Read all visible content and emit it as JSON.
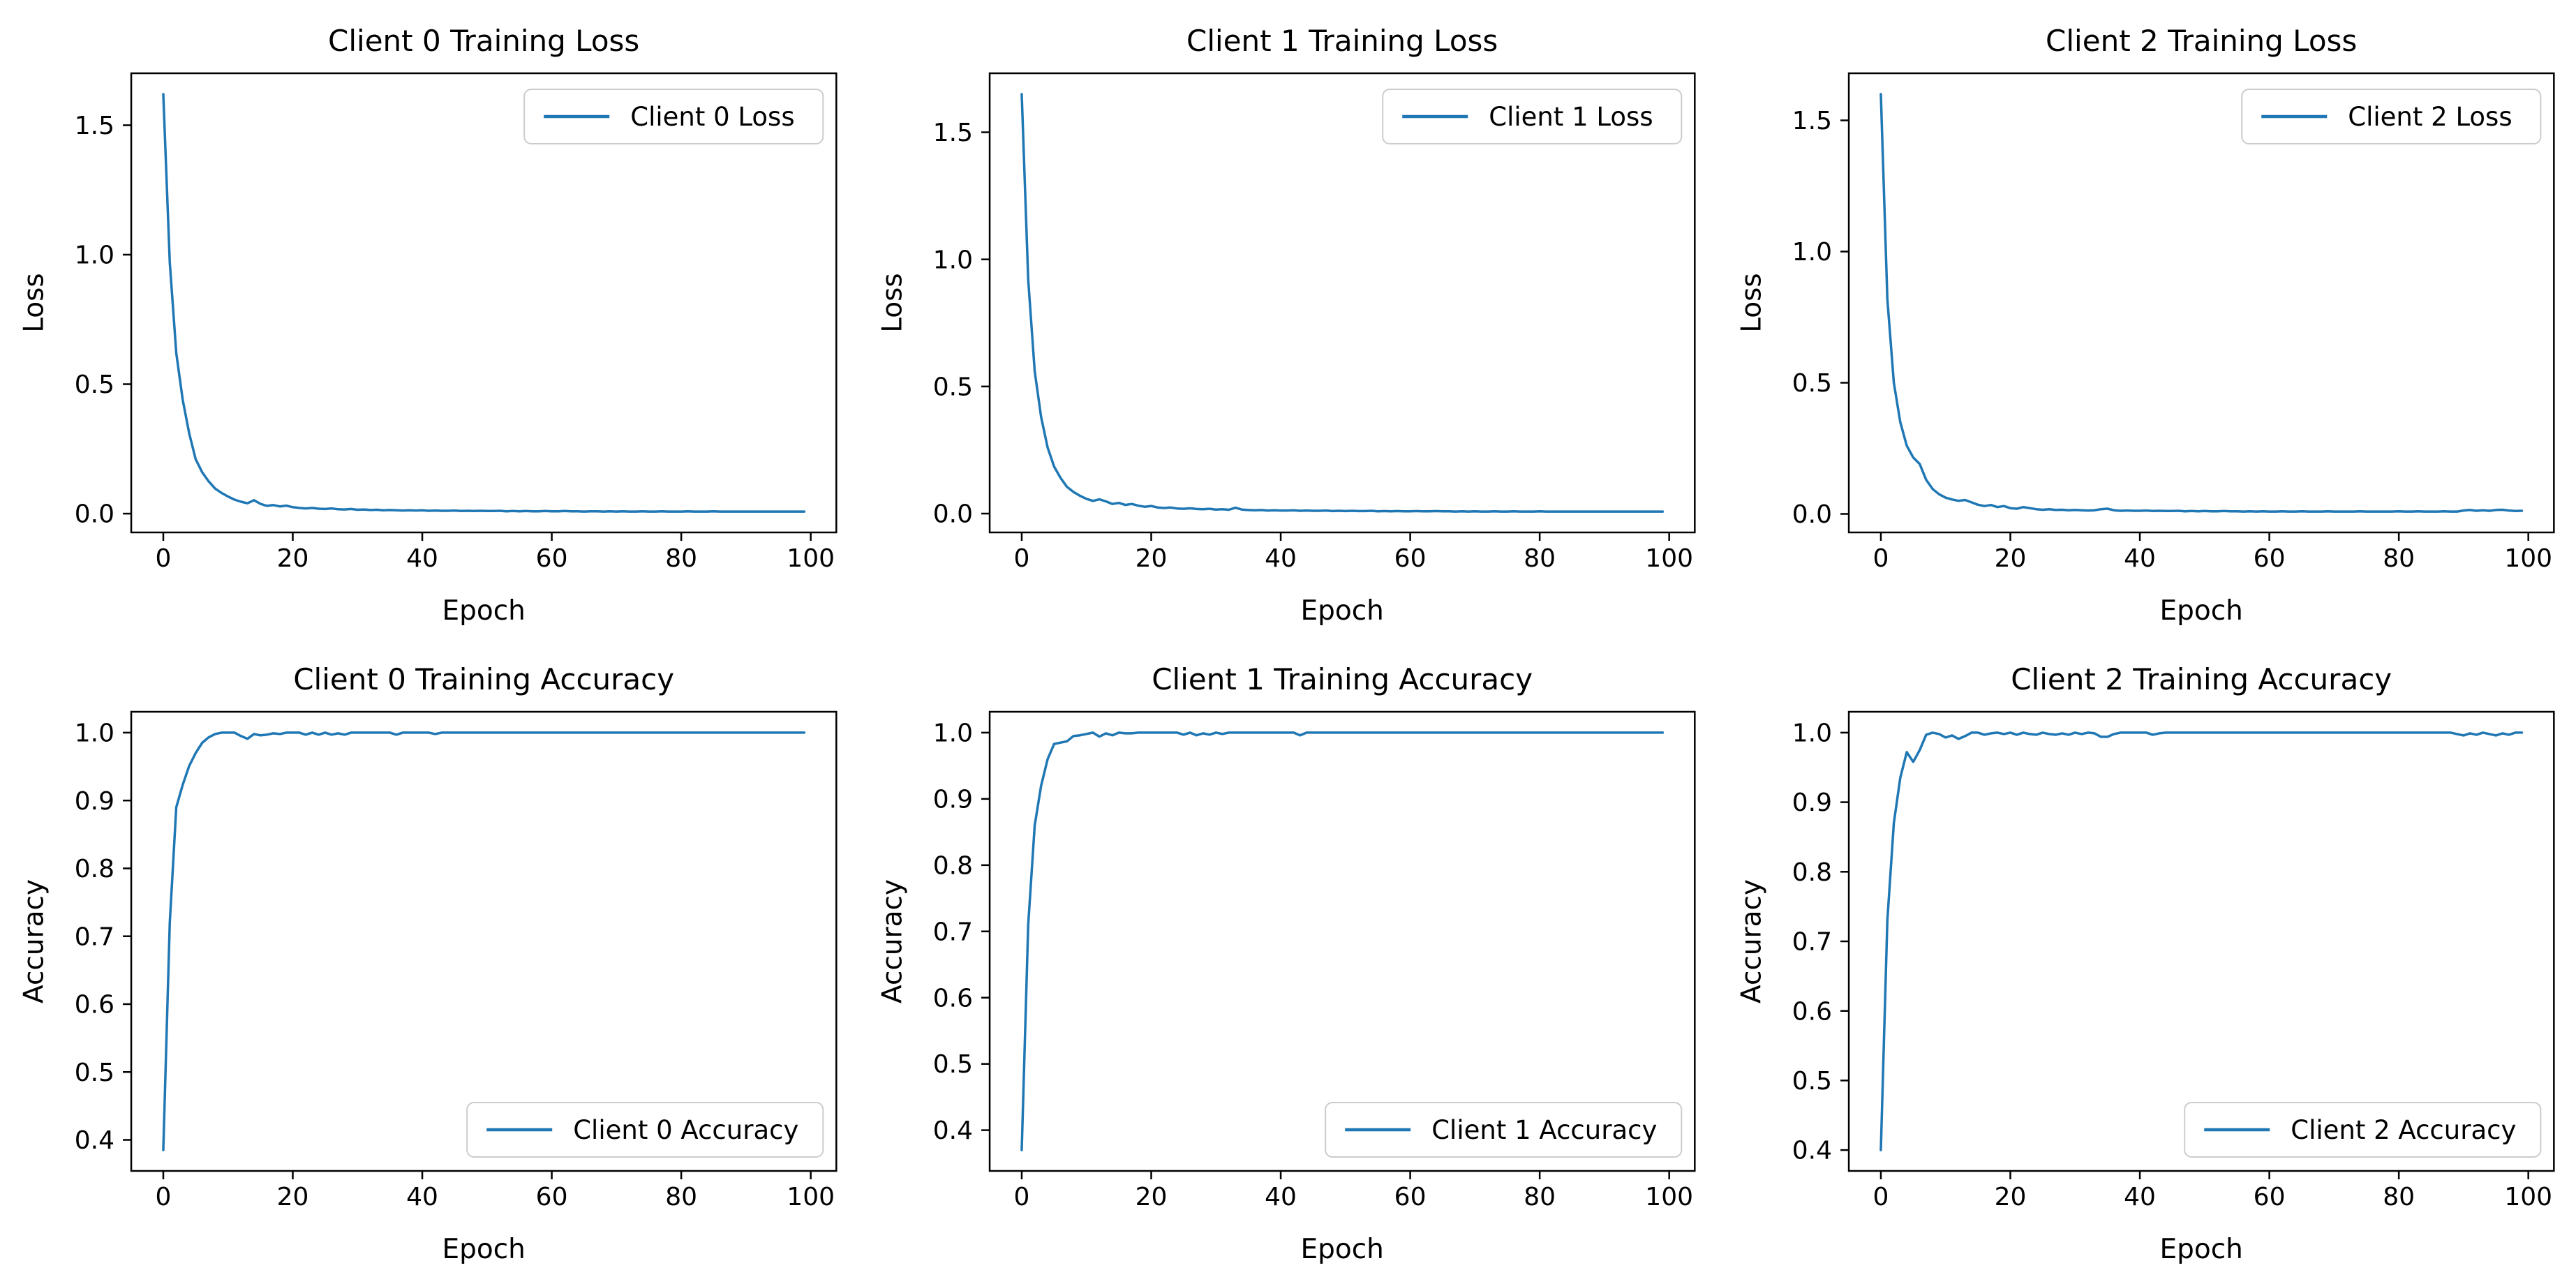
{
  "figure": {
    "background": "#ffffff",
    "accent_line_color": "#1f77b4",
    "axes_color": "#000000",
    "legend_border_color": "#cccccc",
    "grid": "off"
  },
  "chart_data": [
    {
      "type": "line",
      "title": "Client 0 Training Loss",
      "xlabel": "Epoch",
      "ylabel": "Loss",
      "xlim": [
        -4.95,
        103.95
      ],
      "xticks": [
        0,
        20,
        40,
        60,
        80,
        100
      ],
      "yticks": [
        0.0,
        0.5,
        1.0,
        1.5
      ],
      "ytick_labels": [
        "0.0",
        "0.5",
        "1.0",
        "1.5"
      ],
      "legend": {
        "label": "Client 0 Loss",
        "loc": "upper right"
      },
      "series": [
        {
          "name": "Client 0 Loss",
          "color": "#1f77b4",
          "x_is_index": true,
          "values": [
            1.62,
            0.97,
            0.62,
            0.44,
            0.31,
            0.21,
            0.16,
            0.125,
            0.097,
            0.08,
            0.066,
            0.054,
            0.046,
            0.04,
            0.052,
            0.038,
            0.03,
            0.033,
            0.028,
            0.031,
            0.025,
            0.022,
            0.02,
            0.022,
            0.019,
            0.018,
            0.02,
            0.017,
            0.016,
            0.018,
            0.015,
            0.016,
            0.014,
            0.015,
            0.013,
            0.014,
            0.013,
            0.012,
            0.013,
            0.012,
            0.013,
            0.011,
            0.012,
            0.011,
            0.011,
            0.012,
            0.01,
            0.011,
            0.01,
            0.011,
            0.01,
            0.01,
            0.011,
            0.009,
            0.01,
            0.009,
            0.01,
            0.009,
            0.009,
            0.01,
            0.009,
            0.009,
            0.01,
            0.009,
            0.009,
            0.008,
            0.009,
            0.009,
            0.008,
            0.009,
            0.008,
            0.009,
            0.008,
            0.008,
            0.009,
            0.008,
            0.008,
            0.009,
            0.008,
            0.008,
            0.008,
            0.009,
            0.008,
            0.008,
            0.008,
            0.009,
            0.008,
            0.008,
            0.008,
            0.008,
            0.008,
            0.008,
            0.008,
            0.008,
            0.008,
            0.008,
            0.008,
            0.008,
            0.008,
            0.008
          ]
        }
      ]
    },
    {
      "type": "line",
      "title": "Client 1 Training Loss",
      "xlabel": "Epoch",
      "ylabel": "Loss",
      "xlim": [
        -4.95,
        103.95
      ],
      "xticks": [
        0,
        20,
        40,
        60,
        80,
        100
      ],
      "yticks": [
        0.0,
        0.5,
        1.0,
        1.5
      ],
      "ytick_labels": [
        "0.0",
        "0.5",
        "1.0",
        "1.5"
      ],
      "legend": {
        "label": "Client 1 Loss",
        "loc": "upper right"
      },
      "series": [
        {
          "name": "Client 1 Loss",
          "color": "#1f77b4",
          "x_is_index": true,
          "values": [
            1.65,
            0.92,
            0.56,
            0.38,
            0.26,
            0.185,
            0.14,
            0.105,
            0.085,
            0.07,
            0.058,
            0.05,
            0.056,
            0.048,
            0.038,
            0.042,
            0.034,
            0.038,
            0.031,
            0.027,
            0.03,
            0.024,
            0.022,
            0.024,
            0.02,
            0.019,
            0.021,
            0.018,
            0.017,
            0.019,
            0.016,
            0.017,
            0.015,
            0.023,
            0.016,
            0.014,
            0.013,
            0.014,
            0.012,
            0.013,
            0.012,
            0.012,
            0.013,
            0.011,
            0.012,
            0.011,
            0.011,
            0.012,
            0.01,
            0.011,
            0.01,
            0.011,
            0.01,
            0.01,
            0.011,
            0.009,
            0.01,
            0.009,
            0.01,
            0.009,
            0.009,
            0.01,
            0.009,
            0.009,
            0.01,
            0.009,
            0.009,
            0.008,
            0.009,
            0.008,
            0.009,
            0.008,
            0.008,
            0.009,
            0.008,
            0.008,
            0.009,
            0.008,
            0.008,
            0.008,
            0.009,
            0.008,
            0.008,
            0.008,
            0.008,
            0.008,
            0.008,
            0.008,
            0.008,
            0.008,
            0.008,
            0.008,
            0.008,
            0.008,
            0.008,
            0.008,
            0.008,
            0.008,
            0.008,
            0.008
          ]
        }
      ]
    },
    {
      "type": "line",
      "title": "Client 2 Training Loss",
      "xlabel": "Epoch",
      "ylabel": "Loss",
      "xlim": [
        -4.95,
        103.95
      ],
      "xticks": [
        0,
        20,
        40,
        60,
        80,
        100
      ],
      "yticks": [
        0.0,
        0.5,
        1.0,
        1.5
      ],
      "ytick_labels": [
        "0.0",
        "0.5",
        "1.0",
        "1.5"
      ],
      "legend": {
        "label": "Client 2 Loss",
        "loc": "upper right"
      },
      "series": [
        {
          "name": "Client 2 Loss",
          "color": "#1f77b4",
          "x_is_index": true,
          "values": [
            1.6,
            0.82,
            0.5,
            0.35,
            0.26,
            0.215,
            0.19,
            0.13,
            0.095,
            0.075,
            0.062,
            0.055,
            0.05,
            0.053,
            0.044,
            0.035,
            0.03,
            0.034,
            0.026,
            0.03,
            0.022,
            0.02,
            0.026,
            0.022,
            0.018,
            0.016,
            0.018,
            0.015,
            0.016,
            0.014,
            0.015,
            0.014,
            0.013,
            0.014,
            0.018,
            0.02,
            0.014,
            0.012,
            0.013,
            0.012,
            0.012,
            0.013,
            0.011,
            0.012,
            0.011,
            0.011,
            0.012,
            0.01,
            0.011,
            0.01,
            0.011,
            0.01,
            0.01,
            0.011,
            0.01,
            0.01,
            0.009,
            0.01,
            0.009,
            0.01,
            0.009,
            0.009,
            0.01,
            0.009,
            0.009,
            0.01,
            0.009,
            0.009,
            0.009,
            0.01,
            0.009,
            0.009,
            0.009,
            0.009,
            0.01,
            0.009,
            0.009,
            0.009,
            0.009,
            0.009,
            0.01,
            0.009,
            0.009,
            0.01,
            0.009,
            0.009,
            0.009,
            0.01,
            0.009,
            0.009,
            0.013,
            0.015,
            0.012,
            0.014,
            0.012,
            0.015,
            0.016,
            0.013,
            0.011,
            0.012
          ]
        }
      ]
    },
    {
      "type": "line",
      "title": "Client 0 Training Accuracy",
      "xlabel": "Epoch",
      "ylabel": "Accuracy",
      "xlim": [
        -4.95,
        103.95
      ],
      "xticks": [
        0,
        20,
        40,
        60,
        80,
        100
      ],
      "yticks": [
        0.4,
        0.5,
        0.6,
        0.7,
        0.8,
        0.9,
        1.0
      ],
      "ytick_labels": [
        "0.4",
        "0.5",
        "0.6",
        "0.7",
        "0.8",
        "0.9",
        "1.0"
      ],
      "legend": {
        "label": "Client 0 Accuracy",
        "loc": "lower right"
      },
      "series": [
        {
          "name": "Client 0 Accuracy",
          "color": "#1f77b4",
          "x_is_index": true,
          "values": [
            0.385,
            0.72,
            0.89,
            0.923,
            0.951,
            0.97,
            0.985,
            0.993,
            0.998,
            1.0,
            1.0,
            1.0,
            0.995,
            0.991,
            0.998,
            0.996,
            0.997,
            0.999,
            0.998,
            1.0,
            1.0,
            1.0,
            0.997,
            1.0,
            0.997,
            1.0,
            0.997,
            0.999,
            0.997,
            1.0,
            1.0,
            1.0,
            1.0,
            1.0,
            1.0,
            1.0,
            0.997,
            1.0,
            1.0,
            1.0,
            1.0,
            1.0,
            0.998,
            1.0,
            1.0,
            1.0,
            1.0,
            1.0,
            1.0,
            1.0,
            1.0,
            1.0,
            1.0,
            1.0,
            1.0,
            1.0,
            1.0,
            1.0,
            1.0,
            1.0,
            1.0,
            1.0,
            1.0,
            1.0,
            1.0,
            1.0,
            1.0,
            1.0,
            1.0,
            1.0,
            1.0,
            1.0,
            1.0,
            1.0,
            1.0,
            1.0,
            1.0,
            1.0,
            1.0,
            1.0,
            1.0,
            1.0,
            1.0,
            1.0,
            1.0,
            1.0,
            1.0,
            1.0,
            1.0,
            1.0,
            1.0,
            1.0,
            1.0,
            1.0,
            1.0,
            1.0,
            1.0,
            1.0,
            1.0,
            1.0
          ]
        }
      ]
    },
    {
      "type": "line",
      "title": "Client 1 Training Accuracy",
      "xlabel": "Epoch",
      "ylabel": "Accuracy",
      "xlim": [
        -4.95,
        103.95
      ],
      "xticks": [
        0,
        20,
        40,
        60,
        80,
        100
      ],
      "yticks": [
        0.4,
        0.5,
        0.6,
        0.7,
        0.8,
        0.9,
        1.0
      ],
      "ytick_labels": [
        "0.4",
        "0.5",
        "0.6",
        "0.7",
        "0.8",
        "0.9",
        "1.0"
      ],
      "legend": {
        "label": "Client 1 Accuracy",
        "loc": "lower right"
      },
      "series": [
        {
          "name": "Client 1 Accuracy",
          "color": "#1f77b4",
          "x_is_index": true,
          "values": [
            0.37,
            0.71,
            0.86,
            0.92,
            0.96,
            0.983,
            0.985,
            0.987,
            0.995,
            0.996,
            0.998,
            1.0,
            0.994,
            0.999,
            0.996,
            1.0,
            0.999,
            0.999,
            1.0,
            1.0,
            1.0,
            1.0,
            1.0,
            1.0,
            1.0,
            0.997,
            1.0,
            0.996,
            0.999,
            0.997,
            1.0,
            0.998,
            1.0,
            1.0,
            1.0,
            1.0,
            1.0,
            1.0,
            1.0,
            1.0,
            1.0,
            1.0,
            1.0,
            0.996,
            1.0,
            1.0,
            1.0,
            1.0,
            1.0,
            1.0,
            1.0,
            1.0,
            1.0,
            1.0,
            1.0,
            1.0,
            1.0,
            1.0,
            1.0,
            1.0,
            1.0,
            1.0,
            1.0,
            1.0,
            1.0,
            1.0,
            1.0,
            1.0,
            1.0,
            1.0,
            1.0,
            1.0,
            1.0,
            1.0,
            1.0,
            1.0,
            1.0,
            1.0,
            1.0,
            1.0,
            1.0,
            1.0,
            1.0,
            1.0,
            1.0,
            1.0,
            1.0,
            1.0,
            1.0,
            1.0,
            1.0,
            1.0,
            1.0,
            1.0,
            1.0,
            1.0,
            1.0,
            1.0,
            1.0,
            1.0
          ]
        }
      ]
    },
    {
      "type": "line",
      "title": "Client 2 Training Accuracy",
      "xlabel": "Epoch",
      "ylabel": "Accuracy",
      "xlim": [
        -4.95,
        103.95
      ],
      "xticks": [
        0,
        20,
        40,
        60,
        80,
        100
      ],
      "yticks": [
        0.4,
        0.5,
        0.6,
        0.7,
        0.8,
        0.9,
        1.0
      ],
      "ytick_labels": [
        "0.4",
        "0.5",
        "0.6",
        "0.7",
        "0.8",
        "0.9",
        "1.0"
      ],
      "legend": {
        "label": "Client 2 Accuracy",
        "loc": "lower right"
      },
      "series": [
        {
          "name": "Client 2 Accuracy",
          "color": "#1f77b4",
          "x_is_index": true,
          "values": [
            0.4,
            0.73,
            0.87,
            0.935,
            0.972,
            0.958,
            0.975,
            0.997,
            1.0,
            0.998,
            0.993,
            0.996,
            0.991,
            0.995,
            1.0,
            1.0,
            0.997,
            0.999,
            1.0,
            0.998,
            1.0,
            0.997,
            1.0,
            0.998,
            0.997,
            1.0,
            0.998,
            0.997,
            0.999,
            0.997,
            1.0,
            0.998,
            1.0,
            0.999,
            0.994,
            0.994,
            0.998,
            1.0,
            1.0,
            1.0,
            1.0,
            1.0,
            0.997,
            0.999,
            1.0,
            1.0,
            1.0,
            1.0,
            1.0,
            1.0,
            1.0,
            1.0,
            1.0,
            1.0,
            1.0,
            1.0,
            1.0,
            1.0,
            1.0,
            1.0,
            1.0,
            1.0,
            1.0,
            1.0,
            1.0,
            1.0,
            1.0,
            1.0,
            1.0,
            1.0,
            1.0,
            1.0,
            1.0,
            1.0,
            1.0,
            1.0,
            1.0,
            1.0,
            1.0,
            1.0,
            1.0,
            1.0,
            1.0,
            1.0,
            1.0,
            1.0,
            1.0,
            1.0,
            1.0,
            0.998,
            0.996,
            0.999,
            0.997,
            1.0,
            0.998,
            0.996,
            0.999,
            0.997,
            1.0,
            1.0
          ]
        }
      ]
    }
  ]
}
